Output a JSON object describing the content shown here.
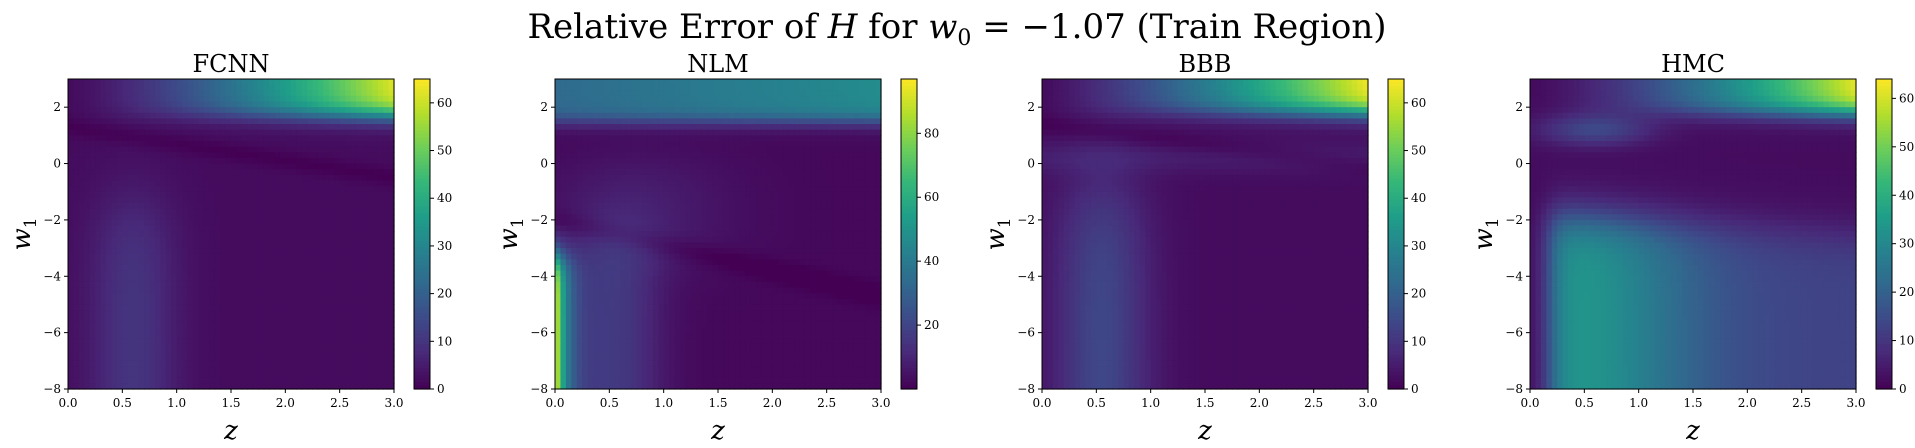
{
  "figure": {
    "title_prefix": "Relative Error of ",
    "title_var": "H",
    "title_mid": " for ",
    "title_param": "w",
    "title_param_sub": "0",
    "title_value": " = −1.07 (Train Region)"
  },
  "colors": {
    "colormap": "viridis",
    "viridis_stops": [
      "#440154",
      "#482878",
      "#3e4989",
      "#31688e",
      "#26828e",
      "#1f9e89",
      "#35b779",
      "#6ece58",
      "#b5de2b",
      "#fde725"
    ]
  },
  "chart_data": [
    {
      "type": "heatmap",
      "title": "FCNN",
      "xlabel": "z",
      "ylabel": "w",
      "ylabel_sub": "1",
      "xlim": [
        0.0,
        3.0
      ],
      "ylim": [
        -8,
        3
      ],
      "xticks": [
        "0.0",
        "0.5",
        "1.0",
        "1.5",
        "2.0",
        "2.5",
        "3.0"
      ],
      "xtick_values": [
        0.0,
        0.5,
        1.0,
        1.5,
        2.0,
        2.5,
        3.0
      ],
      "yticks": [
        "−8",
        "−6",
        "−4",
        "−2",
        "0",
        "2"
      ],
      "ytick_values": [
        -8,
        -6,
        -4,
        -2,
        0,
        2
      ],
      "colorbar": {
        "min": 0,
        "max": 65,
        "ticks": [
          "0",
          "10",
          "20",
          "30",
          "40",
          "50",
          "60"
        ],
        "tick_values": [
          0,
          10,
          20,
          30,
          40,
          50,
          60
        ]
      },
      "model": "fcnn"
    },
    {
      "type": "heatmap",
      "title": "NLM",
      "xlabel": "z",
      "ylabel": "w",
      "ylabel_sub": "1",
      "xlim": [
        0.0,
        3.0
      ],
      "ylim": [
        -8,
        3
      ],
      "xticks": [
        "0.0",
        "0.5",
        "1.0",
        "1.5",
        "2.0",
        "2.5",
        "3.0"
      ],
      "xtick_values": [
        0.0,
        0.5,
        1.0,
        1.5,
        2.0,
        2.5,
        3.0
      ],
      "yticks": [
        "−8",
        "−6",
        "−4",
        "−2",
        "0",
        "2"
      ],
      "ytick_values": [
        -8,
        -6,
        -4,
        -2,
        0,
        2
      ],
      "colorbar": {
        "min": 0,
        "max": 97,
        "ticks": [
          "20",
          "40",
          "60",
          "80"
        ],
        "tick_values": [
          20,
          40,
          60,
          80
        ]
      },
      "model": "nlm"
    },
    {
      "type": "heatmap",
      "title": "BBB",
      "xlabel": "z",
      "ylabel": "w",
      "ylabel_sub": "1",
      "xlim": [
        0.0,
        3.0
      ],
      "ylim": [
        -8,
        3
      ],
      "xticks": [
        "0.0",
        "0.5",
        "1.0",
        "1.5",
        "2.0",
        "2.5",
        "3.0"
      ],
      "xtick_values": [
        0.0,
        0.5,
        1.0,
        1.5,
        2.0,
        2.5,
        3.0
      ],
      "yticks": [
        "−8",
        "−6",
        "−4",
        "−2",
        "0",
        "2"
      ],
      "ytick_values": [
        -8,
        -6,
        -4,
        -2,
        0,
        2
      ],
      "colorbar": {
        "min": 0,
        "max": 65,
        "ticks": [
          "0",
          "10",
          "20",
          "30",
          "40",
          "50",
          "60"
        ],
        "tick_values": [
          0,
          10,
          20,
          30,
          40,
          50,
          60
        ]
      },
      "model": "bbb"
    },
    {
      "type": "heatmap",
      "title": "HMC",
      "xlabel": "z",
      "ylabel": "w",
      "ylabel_sub": "1",
      "xlim": [
        0.0,
        3.0
      ],
      "ylim": [
        -8,
        3
      ],
      "xticks": [
        "0.0",
        "0.5",
        "1.0",
        "1.5",
        "2.0",
        "2.5",
        "3.0"
      ],
      "xtick_values": [
        0.0,
        0.5,
        1.0,
        1.5,
        2.0,
        2.5,
        3.0
      ],
      "yticks": [
        "−8",
        "−6",
        "−4",
        "−2",
        "0",
        "2"
      ],
      "ytick_values": [
        -8,
        -6,
        -4,
        -2,
        0,
        2
      ],
      "colorbar": {
        "min": 0,
        "max": 64,
        "ticks": [
          "0",
          "10",
          "20",
          "30",
          "40",
          "50",
          "60"
        ],
        "tick_values": [
          0,
          10,
          20,
          30,
          40,
          50,
          60
        ]
      },
      "model": "hmc"
    }
  ]
}
